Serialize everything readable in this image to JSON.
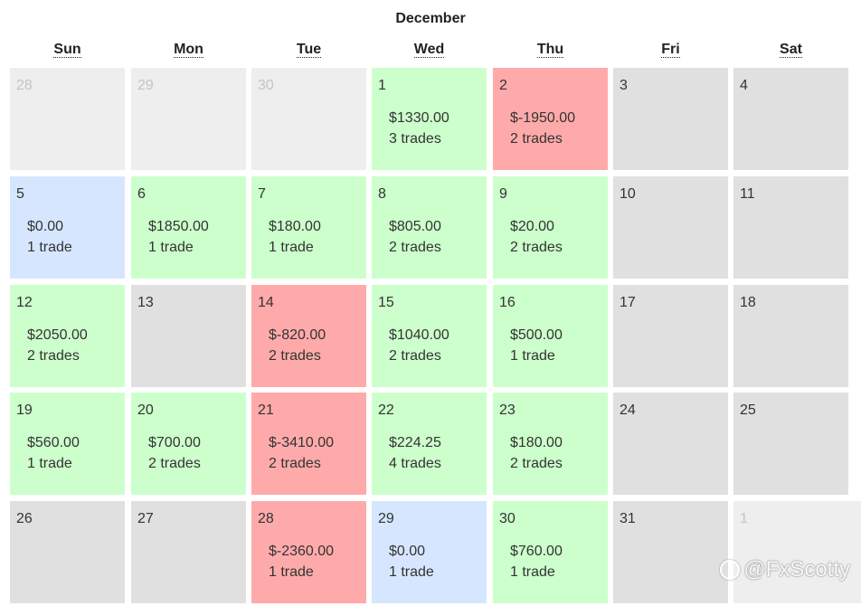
{
  "calendar": {
    "month": "December",
    "weekdays": [
      "Sun",
      "Mon",
      "Tue",
      "Wed",
      "Thu",
      "Fri",
      "Sat"
    ],
    "colors": {
      "outside": "#eeeeee",
      "no_trades": "#e0e0e0",
      "profit": "#ccffcc",
      "loss": "#ffaaaa",
      "flat": "#d6e6ff"
    },
    "days": [
      {
        "day": "28",
        "status": "outside"
      },
      {
        "day": "29",
        "status": "outside"
      },
      {
        "day": "30",
        "status": "outside"
      },
      {
        "day": "1",
        "status": "profit",
        "pnl": "$1330.00",
        "trades": "3 trades"
      },
      {
        "day": "2",
        "status": "loss",
        "pnl": "$-1950.00",
        "trades": "2 trades"
      },
      {
        "day": "3",
        "status": "no_trades"
      },
      {
        "day": "4",
        "status": "no_trades"
      },
      {
        "day": "5",
        "status": "flat",
        "pnl": "$0.00",
        "trades": "1 trade"
      },
      {
        "day": "6",
        "status": "profit",
        "pnl": "$1850.00",
        "trades": "1 trade"
      },
      {
        "day": "7",
        "status": "profit",
        "pnl": "$180.00",
        "trades": "1 trade"
      },
      {
        "day": "8",
        "status": "profit",
        "pnl": "$805.00",
        "trades": "2 trades"
      },
      {
        "day": "9",
        "status": "profit",
        "pnl": "$20.00",
        "trades": "2 trades"
      },
      {
        "day": "10",
        "status": "no_trades"
      },
      {
        "day": "11",
        "status": "no_trades"
      },
      {
        "day": "12",
        "status": "profit",
        "pnl": "$2050.00",
        "trades": "2 trades"
      },
      {
        "day": "13",
        "status": "no_trades"
      },
      {
        "day": "14",
        "status": "loss",
        "pnl": "$-820.00",
        "trades": "2 trades"
      },
      {
        "day": "15",
        "status": "profit",
        "pnl": "$1040.00",
        "trades": "2 trades"
      },
      {
        "day": "16",
        "status": "profit",
        "pnl": "$500.00",
        "trades": "1 trade"
      },
      {
        "day": "17",
        "status": "no_trades"
      },
      {
        "day": "18",
        "status": "no_trades"
      },
      {
        "day": "19",
        "status": "profit",
        "pnl": "$560.00",
        "trades": "1 trade"
      },
      {
        "day": "20",
        "status": "profit",
        "pnl": "$700.00",
        "trades": "2 trades"
      },
      {
        "day": "21",
        "status": "loss",
        "pnl": "$-3410.00",
        "trades": "2 trades"
      },
      {
        "day": "22",
        "status": "profit",
        "pnl": "$224.25",
        "trades": "4 trades"
      },
      {
        "day": "23",
        "status": "profit",
        "pnl": "$180.00",
        "trades": "2 trades"
      },
      {
        "day": "24",
        "status": "no_trades"
      },
      {
        "day": "25",
        "status": "no_trades"
      },
      {
        "day": "26",
        "status": "no_trades"
      },
      {
        "day": "27",
        "status": "no_trades"
      },
      {
        "day": "28",
        "status": "loss",
        "pnl": "$-2360.00",
        "trades": "1 trade"
      },
      {
        "day": "29",
        "status": "flat",
        "pnl": "$0.00",
        "trades": "1 trade"
      },
      {
        "day": "30",
        "status": "profit",
        "pnl": "$760.00",
        "trades": "1 trade"
      },
      {
        "day": "31",
        "status": "no_trades"
      },
      {
        "day": "1",
        "status": "outside"
      }
    ]
  },
  "watermark": {
    "text": "@FxScotty"
  }
}
